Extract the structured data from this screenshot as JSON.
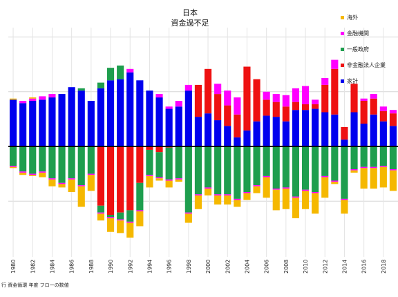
{
  "chart_data": {
    "type": "bar",
    "stacked": true,
    "title": "日本",
    "subtitle": "資金過不足",
    "source_note": "行 資金循環 年度 フローの数値",
    "x_tick_labels": [
      "1980",
      "1982",
      "1984",
      "1986",
      "1988",
      "1990",
      "1992",
      "1994",
      "1996",
      "1998",
      "2000",
      "2002",
      "2004",
      "2006",
      "2008",
      "2010",
      "2012",
      "2014",
      "2016",
      "2018"
    ],
    "ylim": [
      -33,
      42
    ],
    "legend_position": "top-right",
    "grid": true,
    "years": [
      1980,
      1981,
      1982,
      1983,
      1984,
      1985,
      1986,
      1987,
      1988,
      1989,
      1990,
      1991,
      1992,
      1993,
      1994,
      1995,
      1996,
      1997,
      1998,
      1999,
      2000,
      2001,
      2002,
      2003,
      2004,
      2005,
      2006,
      2007,
      2008,
      2009,
      2010,
      2011,
      2012,
      2013,
      2014,
      2015,
      2016,
      2017,
      2018,
      2019
    ],
    "series": [
      {
        "name": "海外",
        "color": "#f5b800",
        "values": [
          0.5,
          0,
          0.5,
          0,
          0,
          0,
          0,
          0,
          0,
          0,
          0,
          0,
          0,
          0,
          0,
          0,
          0,
          0,
          0,
          0,
          0,
          0,
          0,
          0,
          0,
          0,
          0,
          0,
          0,
          0,
          0,
          0,
          0,
          0,
          0,
          0,
          0,
          0,
          0,
          0
        ]
      },
      {
        "name": "金融機関",
        "color": "#ff00ff",
        "values": [
          0,
          1,
          1,
          1.5,
          1.5,
          0,
          0,
          0,
          0,
          0,
          0,
          0,
          1.5,
          0,
          0,
          1.5,
          1,
          2.5,
          2.5,
          0,
          0,
          4.5,
          6.5,
          7.5,
          0,
          0,
          3.5,
          3.5,
          5,
          6,
          8,
          2,
          3,
          4,
          0,
          0,
          1,
          2,
          2,
          1.5
        ]
      },
      {
        "name": "一般政府",
        "color": "#1e9e4e",
        "values": [
          0,
          0,
          0,
          0,
          0,
          0,
          0,
          1,
          0,
          2.5,
          5.5,
          6,
          0,
          0,
          0,
          0,
          0,
          0,
          0,
          0,
          0,
          0,
          0,
          0,
          0,
          0,
          0,
          0,
          0,
          0,
          0,
          0,
          0,
          0,
          0,
          0,
          0,
          0,
          0,
          0
        ]
      },
      {
        "name": "非金融法人企業",
        "color": "#ee1111",
        "values": [
          0,
          0,
          0,
          0,
          0,
          0,
          0,
          0,
          0,
          0,
          0,
          0,
          0,
          0,
          0,
          0,
          0,
          0,
          0,
          14,
          19.5,
          11.5,
          9,
          10,
          28,
          18.5,
          7,
          6.5,
          6.5,
          3.5,
          2.5,
          2,
          12,
          20,
          5.5,
          12.5,
          10,
          7,
          4.5,
          5.5
        ]
      },
      {
        "name": "家計",
        "color": "#0000ee",
        "values": [
          20.5,
          19,
          20,
          20.5,
          21.5,
          23,
          26,
          24.5,
          20,
          25.5,
          29,
          29.5,
          32.5,
          29,
          24.5,
          21.5,
          16.5,
          17.5,
          24.5,
          13,
          14.5,
          11.5,
          9,
          4,
          7,
          11,
          13.5,
          13,
          11,
          16,
          16,
          16.5,
          15,
          14,
          3,
          15,
          10,
          14,
          11,
          9
        ]
      }
    ],
    "negative_series": [
      {
        "name": "海外",
        "color": "#f5b800",
        "values": [
          -0.5,
          -1,
          -0.5,
          -2,
          -3,
          -1.5,
          -5.5,
          -9,
          -7,
          -3,
          -6,
          -5.5,
          -6.5,
          -6.5,
          -5,
          -1,
          -3,
          -1,
          -4,
          -6,
          -3,
          -4,
          -4,
          -3,
          -3,
          -3,
          -9,
          -9,
          -9,
          -9,
          -8,
          -9,
          -9,
          -1,
          -6,
          -1,
          -9,
          -9,
          -9,
          -9
        ]
      },
      {
        "name": "金融機関",
        "color": "#ff00ff",
        "values": [
          -0.5,
          -0.5,
          -0.5,
          -0.5,
          -0.5,
          -0.5,
          -0.5,
          -0.5,
          -0.5,
          -0.5,
          -0.5,
          -0.5,
          -0.5,
          -0.5,
          -0.5,
          -0.5,
          -0.5,
          -0.5,
          -0.5,
          -0.5,
          -0.5,
          -0.5,
          -0.5,
          -0.5,
          -0.5,
          -0.5,
          -0.5,
          -0.5,
          -0.5,
          -0.5,
          -0.5,
          -0.5,
          -0.5,
          -0.5,
          -0.5,
          -0.5,
          -0.5,
          -0.5,
          -0.5,
          -0.5
        ]
      },
      {
        "name": "一般政府",
        "color": "#1e9e4e",
        "values": [
          -8.5,
          -11,
          -12,
          -11,
          -14,
          -16,
          -14,
          -17,
          -12,
          -3,
          -1,
          -3,
          -5,
          -12,
          -11,
          -11,
          -14,
          -14,
          -29,
          -21,
          -18,
          -21,
          -21,
          -23,
          -20,
          -17,
          -13,
          -18.5,
          -18,
          -22,
          -19,
          -20,
          -13,
          -15,
          -23,
          -10,
          -9,
          -9,
          -8.5,
          -10
        ]
      },
      {
        "name": "非金融法人企業",
        "color": "#ee1111",
        "values": [
          0,
          0,
          0,
          0,
          0,
          0,
          0,
          0,
          0,
          -26,
          -30,
          -29,
          -28,
          -16,
          -1.5,
          -2.5,
          -0.5,
          0,
          0,
          0,
          0,
          0,
          0,
          0,
          0,
          0,
          0,
          0,
          0,
          0,
          0,
          0,
          0,
          0,
          0,
          0,
          0,
          0,
          0,
          0
        ]
      },
      {
        "name": "家計",
        "color": "#0000ee",
        "values": [
          0,
          0,
          0,
          0,
          0,
          0,
          0,
          0,
          0,
          0,
          0,
          0,
          0,
          0,
          0,
          0,
          0,
          0,
          0,
          0,
          0,
          0,
          0,
          0,
          0,
          0,
          0,
          0,
          0,
          0,
          0,
          0,
          0,
          0,
          0,
          0,
          0,
          0,
          0,
          0
        ]
      }
    ]
  }
}
